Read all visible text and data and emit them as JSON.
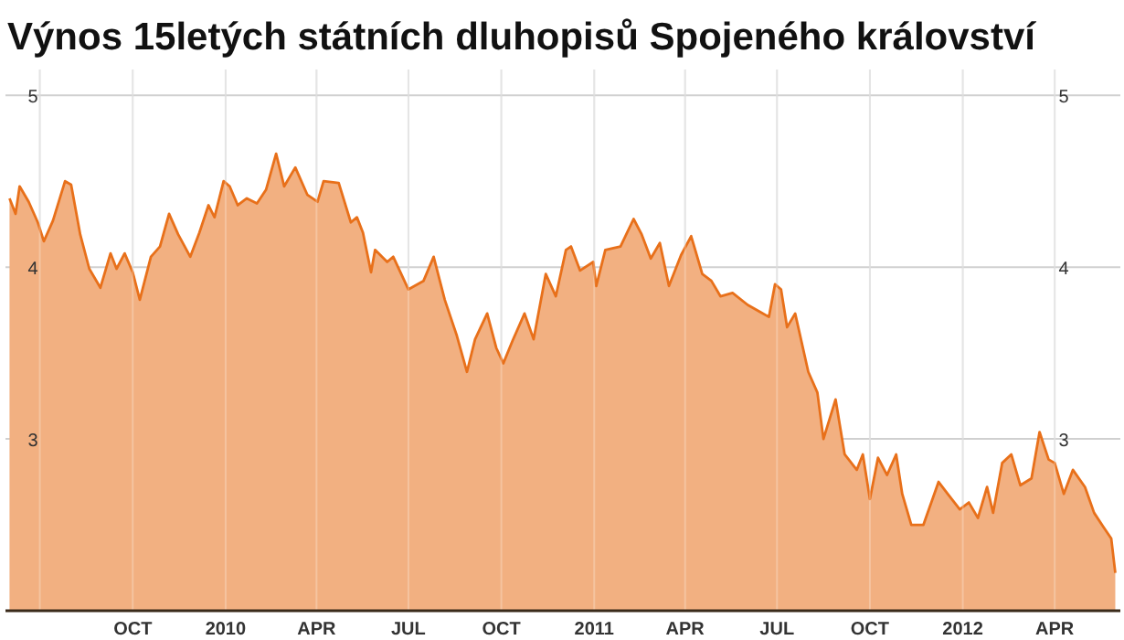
{
  "chart_data": {
    "type": "area",
    "title": "Výnos 15letých státních dluhopisů Spojeného království",
    "x": [
      "2009-06-01",
      "2009-06-07",
      "2009-06-11",
      "2009-06-20",
      "2009-06-29",
      "2009-07-05",
      "2009-07-14",
      "2009-07-26",
      "2009-08-01",
      "2009-08-10",
      "2009-08-19",
      "2009-08-30",
      "2009-09-09",
      "2009-09-15",
      "2009-09-23",
      "2009-10-01",
      "2009-10-08",
      "2009-10-19",
      "2009-10-28",
      "2009-11-06",
      "2009-11-15",
      "2009-11-27",
      "2009-12-06",
      "2009-12-15",
      "2009-12-21",
      "2009-12-30",
      "2010-01-05",
      "2010-01-13",
      "2010-01-22",
      "2010-02-01",
      "2010-02-10",
      "2010-02-20",
      "2010-02-28",
      "2010-03-11",
      "2010-03-23",
      "2010-04-02",
      "2010-04-08",
      "2010-04-23",
      "2010-05-05",
      "2010-05-11",
      "2010-05-17",
      "2010-05-25",
      "2010-05-29",
      "2010-06-10",
      "2010-06-16",
      "2010-07-01",
      "2010-07-16",
      "2010-07-26",
      "2010-08-06",
      "2010-08-18",
      "2010-08-28",
      "2010-09-05",
      "2010-09-17",
      "2010-09-26",
      "2010-10-03",
      "2010-10-12",
      "2010-10-24",
      "2010-11-02",
      "2010-11-14",
      "2010-11-24",
      "2010-12-04",
      "2010-12-09",
      "2010-12-18",
      "2010-12-31",
      "2011-01-03",
      "2011-01-12",
      "2011-01-27",
      "2011-02-09",
      "2011-02-17",
      "2011-02-26",
      "2011-03-07",
      "2011-03-16",
      "2011-03-28",
      "2011-04-07",
      "2011-04-18",
      "2011-04-27",
      "2011-05-06",
      "2011-05-18",
      "2011-06-02",
      "2011-06-14",
      "2011-06-23",
      "2011-06-29",
      "2011-07-05",
      "2011-07-11",
      "2011-07-19",
      "2011-08-01",
      "2011-08-10",
      "2011-08-16",
      "2011-08-28",
      "2011-09-06",
      "2011-09-18",
      "2011-09-24",
      "2011-10-01",
      "2011-10-09",
      "2011-10-18",
      "2011-10-27",
      "2011-11-02",
      "2011-11-11",
      "2011-11-23",
      "2011-12-08",
      "2011-12-17",
      "2011-12-29",
      "2012-01-07",
      "2012-01-16",
      "2012-01-25",
      "2012-01-31",
      "2012-02-09",
      "2012-02-18",
      "2012-02-27",
      "2012-03-09",
      "2012-03-17",
      "2012-03-26",
      "2012-04-01",
      "2012-04-10",
      "2012-04-19",
      "2012-05-01",
      "2012-05-10",
      "2012-05-19",
      "2012-05-27",
      "2012-05-31"
    ],
    "series": [
      {
        "color": "#e8701a",
        "values": [
          4.4,
          4.31,
          4.47,
          4.38,
          4.26,
          4.15,
          4.27,
          4.5,
          4.48,
          4.19,
          3.99,
          3.88,
          4.08,
          3.99,
          4.08,
          3.97,
          3.81,
          4.06,
          4.12,
          4.31,
          4.19,
          4.06,
          4.2,
          4.36,
          4.29,
          4.5,
          4.47,
          4.36,
          4.4,
          4.37,
          4.45,
          4.66,
          4.47,
          4.58,
          4.42,
          4.38,
          4.5,
          4.49,
          4.26,
          4.29,
          4.2,
          3.97,
          4.1,
          4.03,
          4.06,
          3.87,
          3.92,
          4.06,
          3.81,
          3.6,
          3.39,
          3.58,
          3.73,
          3.53,
          3.44,
          3.57,
          3.73,
          3.58,
          3.96,
          3.83,
          4.1,
          4.12,
          3.98,
          4.03,
          3.89,
          4.1,
          4.12,
          4.28,
          4.19,
          4.05,
          4.14,
          3.89,
          4.07,
          4.18,
          3.96,
          3.92,
          3.83,
          3.85,
          3.78,
          3.74,
          3.71,
          3.9,
          3.87,
          3.65,
          3.73,
          3.39,
          3.27,
          3.0,
          3.23,
          2.91,
          2.82,
          2.91,
          2.65,
          2.89,
          2.79,
          2.91,
          2.68,
          2.5,
          2.5,
          2.75,
          2.68,
          2.59,
          2.63,
          2.54,
          2.72,
          2.57,
          2.86,
          2.91,
          2.73,
          2.77,
          3.04,
          2.88,
          2.86,
          2.68,
          2.82,
          2.72,
          2.57,
          2.49,
          2.42,
          2.22
        ]
      }
    ],
    "xlim": [
      "2009-05-28",
      "2012-06-05"
    ],
    "xticks": [
      {
        "value": "2009-07-01",
        "label": null
      },
      {
        "value": "2009-10-01",
        "label": "OCT"
      },
      {
        "value": "2010-01-01",
        "label": "2010"
      },
      {
        "value": "2010-04-01",
        "label": "APR"
      },
      {
        "value": "2010-07-01",
        "label": "JUL"
      },
      {
        "value": "2010-10-01",
        "label": "OCT"
      },
      {
        "value": "2011-01-01",
        "label": "2011"
      },
      {
        "value": "2011-04-01",
        "label": "APR"
      },
      {
        "value": "2011-07-01",
        "label": "JUL"
      },
      {
        "value": "2011-10-01",
        "label": "OCT"
      },
      {
        "value": "2012-01-01",
        "label": "2012"
      },
      {
        "value": "2012-04-01",
        "label": "APR"
      }
    ],
    "ylim": [
      2,
      5.15
    ],
    "yticks": [
      3,
      4,
      5
    ],
    "y2lim": [
      2,
      5.15
    ],
    "y2ticks": [
      3,
      4,
      5
    ],
    "grid": true
  }
}
